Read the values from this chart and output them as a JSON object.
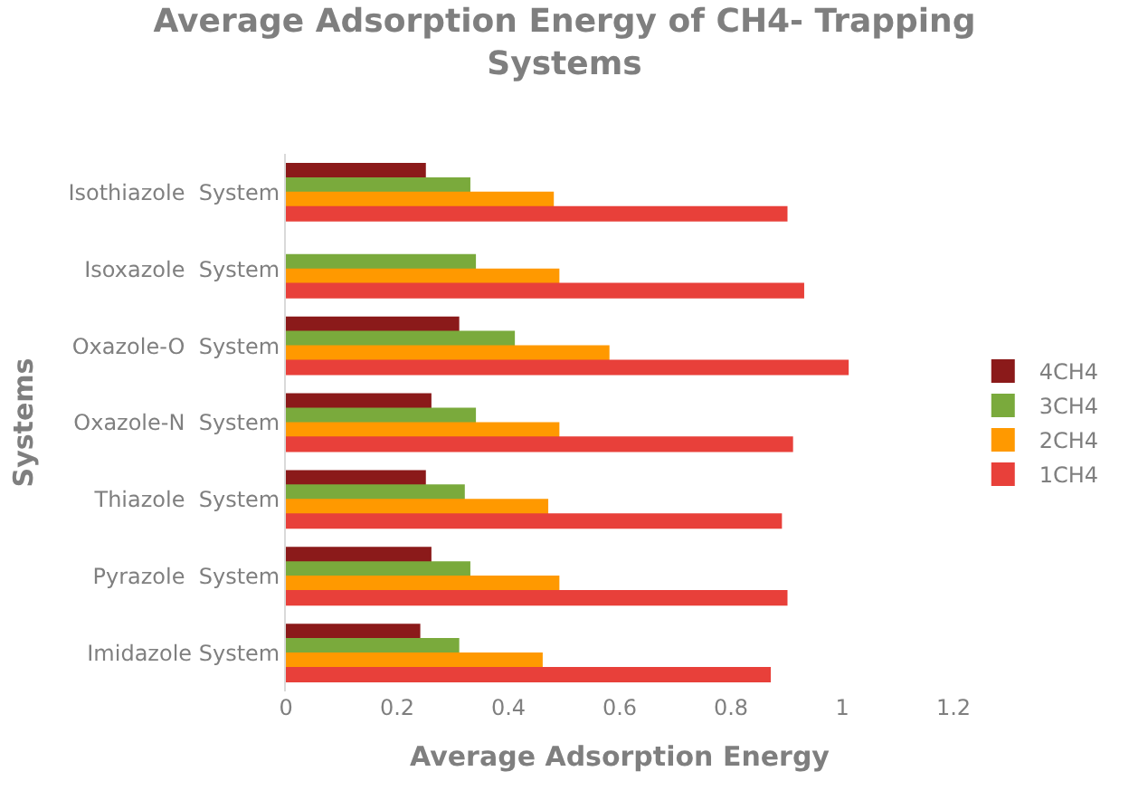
{
  "chart_data": {
    "type": "bar",
    "orientation": "horizontal",
    "title": "Average Adsorption Energy of CH4- Trapping Systems",
    "xlabel": "Average Adsorption Energy",
    "ylabel": "Systems",
    "categories": [
      "Isothiazole  System",
      "Isoxazole  System",
      "Oxazole-O  System",
      "Oxazole-N  System",
      "Thiazole  System",
      "Pyrazole  System",
      "Imidazole System"
    ],
    "series": [
      {
        "name": "4CH4",
        "color": "#8b1a1a",
        "values": [
          0.25,
          null,
          0.31,
          0.26,
          0.25,
          0.26,
          0.24
        ]
      },
      {
        "name": "3CH4",
        "color": "#7aaa3c",
        "values": [
          0.33,
          0.34,
          0.41,
          0.34,
          0.32,
          0.33,
          0.31
        ]
      },
      {
        "name": "2CH4",
        "color": "#ff9900",
        "values": [
          0.48,
          0.49,
          0.58,
          0.49,
          0.47,
          0.49,
          0.46
        ]
      },
      {
        "name": "1CH4",
        "color": "#e8403a",
        "values": [
          0.9,
          0.93,
          1.01,
          0.91,
          0.89,
          0.9,
          0.87
        ]
      }
    ],
    "xlim": [
      0,
      1.2
    ],
    "xticks": [
      0,
      0.2,
      0.4,
      0.6,
      0.8,
      1,
      1.2
    ],
    "legend": "right"
  }
}
